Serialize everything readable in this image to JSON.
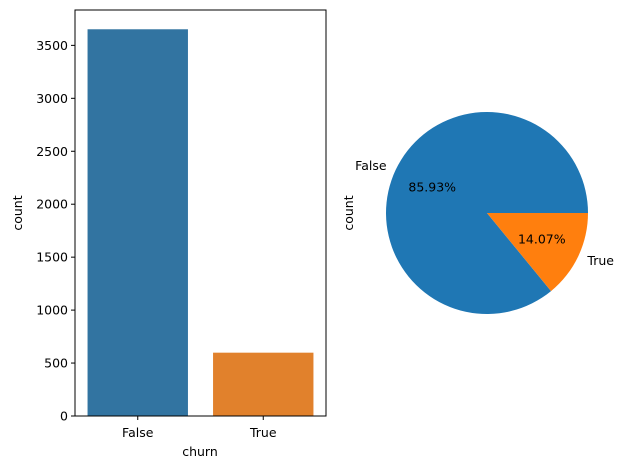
{
  "chart_data": [
    {
      "type": "bar",
      "categories": [
        "False",
        "True"
      ],
      "values": [
        3652,
        598
      ],
      "xlabel": "churn",
      "ylabel": "count",
      "ylim": [
        0,
        3834
      ],
      "yticks": [
        0,
        500,
        1000,
        1500,
        2000,
        2500,
        3000,
        3500
      ],
      "colors": [
        "#3274a1",
        "#e1812c"
      ],
      "grid": false
    },
    {
      "type": "pie",
      "labels": [
        "False",
        "True"
      ],
      "values": [
        85.93,
        14.07
      ],
      "value_labels": [
        "85.93%",
        "14.07%"
      ],
      "ylabel": "count",
      "colors": [
        "#1f77b4",
        "#ff7f0e"
      ]
    }
  ]
}
